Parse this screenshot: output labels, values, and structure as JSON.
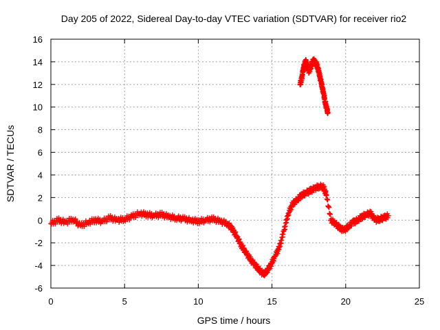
{
  "chart_data": {
    "type": "scatter",
    "title": "Day 205 of 2022, Sidereal Day-to-day VTEC variation (SDTVAR) for receiver rio2",
    "xlabel": "GPS time / hours",
    "ylabel": "SDTVAR / TECUs",
    "xlim": [
      0,
      25
    ],
    "ylim": [
      -6,
      16
    ],
    "xticks": [
      0,
      5,
      10,
      15,
      20,
      25
    ],
    "yticks": [
      -6,
      -4,
      -2,
      0,
      2,
      4,
      6,
      8,
      10,
      12,
      14,
      16
    ],
    "grid": true,
    "marker": "+",
    "color": "#ff0000",
    "series": [
      {
        "name": "SDTVAR",
        "x": [
          0.0,
          0.5,
          1.0,
          1.5,
          2.0,
          2.5,
          3.0,
          3.5,
          4.0,
          4.5,
          5.0,
          5.5,
          6.0,
          6.5,
          7.0,
          7.5,
          8.0,
          8.5,
          9.0,
          9.5,
          10.0,
          10.5,
          11.0,
          11.5,
          12.0,
          12.3,
          12.6,
          12.9,
          13.2,
          13.5,
          13.8,
          14.1,
          14.4,
          14.6,
          14.9,
          15.2,
          15.5,
          15.8,
          16.1,
          16.4,
          16.7,
          17.0,
          17.3,
          17.6,
          17.9,
          18.2,
          18.5,
          18.7,
          19.0,
          19.3,
          19.6,
          19.9,
          20.2,
          20.5,
          20.8,
          21.1,
          21.4,
          21.7,
          22.0,
          22.3,
          22.6,
          22.9
        ],
        "y": [
          -0.3,
          0.0,
          -0.2,
          0.1,
          -0.5,
          -0.2,
          0.0,
          -0.1,
          0.2,
          0.0,
          0.1,
          0.3,
          0.6,
          0.5,
          0.4,
          0.5,
          0.3,
          0.2,
          0.1,
          0.0,
          -0.1,
          0.0,
          0.1,
          -0.1,
          -0.3,
          -0.8,
          -1.4,
          -2.2,
          -2.8,
          -3.4,
          -3.9,
          -4.3,
          -4.8,
          -4.6,
          -4.0,
          -3.2,
          -2.4,
          -1.0,
          0.6,
          1.4,
          1.8,
          2.2,
          2.4,
          2.6,
          2.8,
          3.0,
          2.9,
          2.2,
          0.0,
          -0.3,
          -0.7,
          -0.9,
          -0.5,
          -0.2,
          0.0,
          0.3,
          0.5,
          0.6,
          0.0,
          0.1,
          0.2,
          0.4
        ]
      },
      {
        "name": "SDTVAR (high segment)",
        "x": [
          16.9,
          17.0,
          17.1,
          17.2,
          17.3,
          17.4,
          17.5,
          17.6,
          17.7,
          17.8,
          17.9,
          18.0,
          18.1,
          18.2,
          18.3,
          18.4,
          18.5,
          18.6,
          18.7,
          18.8
        ],
        "y": [
          12.0,
          12.4,
          13.2,
          13.8,
          14.0,
          13.5,
          13.2,
          13.4,
          13.8,
          14.1,
          14.0,
          13.8,
          13.5,
          13.0,
          12.4,
          11.8,
          11.2,
          10.5,
          9.9,
          9.5
        ]
      }
    ]
  }
}
